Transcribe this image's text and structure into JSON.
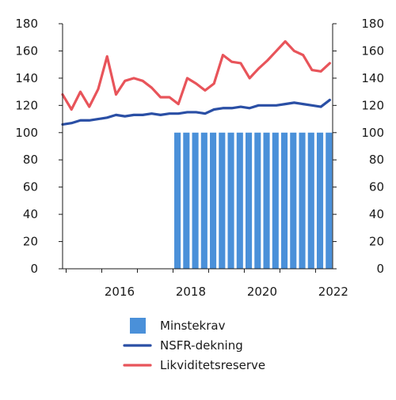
{
  "chart_data": {
    "type": "bar+line",
    "y_axis": {
      "min": 0,
      "max": 180,
      "ticks": [
        0,
        20,
        40,
        60,
        80,
        100,
        120,
        140,
        160,
        180
      ],
      "left_and_right": true
    },
    "x_axis": {
      "tick_labels": [
        "2016",
        "2018",
        "2020",
        "2022"
      ]
    },
    "grid": false,
    "legend_placement": "bottom",
    "series": [
      {
        "name": "Minstekrav",
        "kind": "bar",
        "color": "#4a90d9",
        "x": [
          2018.0,
          2018.25,
          2018.5,
          2018.75,
          2019.0,
          2019.25,
          2019.5,
          2019.75,
          2020.0,
          2020.25,
          2020.5,
          2020.75,
          2021.0,
          2021.25,
          2021.5,
          2021.75,
          2022.0,
          2022.25
        ],
        "values": [
          100,
          100,
          100,
          100,
          100,
          100,
          100,
          100,
          100,
          100,
          100,
          100,
          100,
          100,
          100,
          100,
          100,
          100
        ]
      },
      {
        "name": "NSFR-dekning",
        "kind": "line",
        "color": "#2a4fa5",
        "x": [
          2014.9,
          2015.15,
          2015.4,
          2015.65,
          2015.9,
          2016.15,
          2016.4,
          2016.65,
          2016.9,
          2017.15,
          2017.4,
          2017.65,
          2017.9,
          2018.15,
          2018.4,
          2018.65,
          2018.9,
          2019.15,
          2019.4,
          2019.65,
          2019.9,
          2020.15,
          2020.4,
          2020.65,
          2020.9,
          2021.15,
          2021.4,
          2021.65,
          2021.9,
          2022.15,
          2022.4
        ],
        "values": [
          106,
          107,
          109,
          109,
          110,
          111,
          113,
          112,
          113,
          113,
          114,
          113,
          114,
          114,
          115,
          115,
          114,
          117,
          118,
          118,
          119,
          118,
          120,
          120,
          120,
          121,
          122,
          121,
          120,
          119,
          124
        ]
      },
      {
        "name": "Likviditetsreserve",
        "kind": "line",
        "color": "#e8545a",
        "x": [
          2014.9,
          2015.15,
          2015.4,
          2015.65,
          2015.9,
          2016.15,
          2016.4,
          2016.65,
          2016.9,
          2017.15,
          2017.4,
          2017.65,
          2017.9,
          2018.15,
          2018.4,
          2018.65,
          2018.9,
          2019.15,
          2019.4,
          2019.65,
          2019.9,
          2020.15,
          2020.4,
          2020.65,
          2020.9,
          2021.15,
          2021.4,
          2021.65,
          2021.9,
          2022.15,
          2022.4
        ],
        "values": [
          128,
          117,
          130,
          119,
          132,
          156,
          128,
          138,
          140,
          138,
          133,
          126,
          126,
          121,
          140,
          136,
          131,
          136,
          157,
          152,
          151,
          140,
          147,
          153,
          160,
          167,
          160,
          157,
          146,
          145,
          151
        ]
      }
    ]
  }
}
